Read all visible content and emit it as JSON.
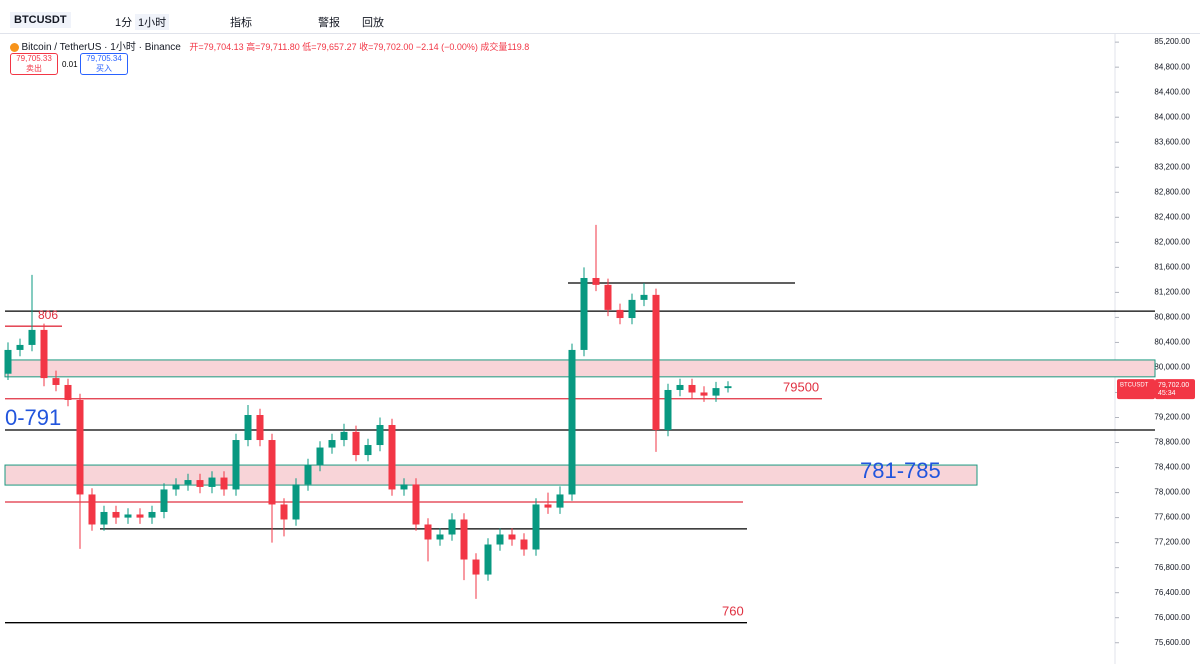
{
  "toolbar": {
    "symbol": "BTCUSDT",
    "interval_min": "1分",
    "interval": "1小时",
    "indicators": "指标",
    "alerts": "警报",
    "replay": "回放"
  },
  "legend": {
    "title": "Bitcoin / TetherUS · 1小时 · Binance",
    "ohlc": "开=79,704.13 高=79,711.80 低=79,657.27 收=79,702.00 −2.14 (−0.00%) 成交量119.8"
  },
  "trade": {
    "sell_price": "79,705.33",
    "sell": "卖出",
    "spread": "0.01",
    "buy_price": "79,705.34",
    "buy": "买入"
  },
  "price_tag": {
    "symbol": "BTCUSDT",
    "price": {
      "value": 79702,
      "label": "79,702.00"
    },
    "countdown": "45:34"
  },
  "chart_data": {
    "type": "candlestick",
    "up_color": "#089981",
    "down_color": "#f23645",
    "grid": false,
    "ylim": [
      75260,
      85330
    ],
    "yticks": [
      {
        "value": 85200,
        "label": "85,200.00"
      },
      {
        "value": 84800,
        "label": "84,800.00"
      },
      {
        "value": 84400,
        "label": "84,400.00"
      },
      {
        "value": 84000,
        "label": "84,000.00"
      },
      {
        "value": 83600,
        "label": "83,600.00"
      },
      {
        "value": 83200,
        "label": "83,200.00"
      },
      {
        "value": 82800,
        "label": "82,800.00"
      },
      {
        "value": 82400,
        "label": "82,400.00"
      },
      {
        "value": 82000,
        "label": "82,000.00"
      },
      {
        "value": 81600,
        "label": "81,600.00"
      },
      {
        "value": 81200,
        "label": "81,200.00"
      },
      {
        "value": 80800,
        "label": "80,800.00"
      },
      {
        "value": 80400,
        "label": "80,400.00"
      },
      {
        "value": 80000,
        "label": "80,000.00"
      },
      {
        "value": 79600,
        "label": "79,600.00"
      },
      {
        "value": 79200,
        "label": "79,200.00"
      },
      {
        "value": 78800,
        "label": "78,800.00"
      },
      {
        "value": 78400,
        "label": "78,400.00"
      },
      {
        "value": 78000,
        "label": "78,000.00"
      },
      {
        "value": 77600,
        "label": "77,600.00"
      },
      {
        "value": 77200,
        "label": "77,200.00"
      },
      {
        "value": 76800,
        "label": "76,800.00"
      },
      {
        "value": 76400,
        "label": "76,400.00"
      },
      {
        "value": 76000,
        "label": "76,000.00"
      },
      {
        "value": 75600,
        "label": "75,600.00"
      }
    ],
    "open": [
      79900,
      80280,
      80360,
      80600,
      79830,
      79720,
      79480,
      77970,
      77490,
      77690,
      77600,
      77650,
      77600,
      77690,
      78050,
      78130,
      78200,
      78090,
      78240,
      78050,
      78840,
      79240,
      78840,
      77810,
      77570,
      78130,
      78440,
      78720,
      78840,
      78970,
      78600,
      78760,
      79080,
      78050,
      78130,
      77490,
      77250,
      77330,
      77570,
      76930,
      76690,
      77170,
      77330,
      77250,
      77090,
      77810,
      77760,
      77970,
      80280,
      81430,
      81320,
      80920,
      80790,
      81080,
      81160,
      79000,
      79640,
      79720,
      79600,
      79550,
      79670
    ],
    "high": [
      80400,
      80460,
      81480,
      80700,
      79950,
      79820,
      79580,
      78070,
      77790,
      77790,
      77750,
      77750,
      77790,
      78150,
      78230,
      78300,
      78300,
      78340,
      78340,
      78940,
      79400,
      79340,
      78940,
      77910,
      78230,
      78540,
      78820,
      78940,
      79100,
      79070,
      78860,
      79200,
      79180,
      78230,
      78230,
      77590,
      77430,
      77670,
      77670,
      77030,
      77270,
      77430,
      77430,
      77350,
      77910,
      78000,
      78100,
      80380,
      81600,
      82280,
      81420,
      81020,
      81180,
      81350,
      81260,
      79740,
      79820,
      79820,
      79700,
      79770,
      79780
    ],
    "low": [
      79800,
      80180,
      80260,
      79700,
      79620,
      79380,
      77100,
      77390,
      77390,
      77500,
      77500,
      77500,
      77500,
      77590,
      77950,
      78030,
      77990,
      77990,
      77950,
      77950,
      78740,
      78740,
      77200,
      77300,
      77470,
      78030,
      78340,
      78620,
      78740,
      78500,
      78500,
      78660,
      77950,
      77950,
      77390,
      76900,
      77150,
      77230,
      76600,
      76300,
      76590,
      77070,
      77150,
      76990,
      76990,
      77660,
      77660,
      77870,
      80180,
      81220,
      80820,
      80690,
      80690,
      80980,
      78650,
      78900,
      79540,
      79500,
      79450,
      79450,
      79600
    ],
    "close": [
      80280,
      80360,
      80600,
      79830,
      79720,
      79480,
      77970,
      77490,
      77690,
      77600,
      77650,
      77600,
      77690,
      78050,
      78130,
      78200,
      78090,
      78240,
      78050,
      78840,
      79240,
      78840,
      77810,
      77570,
      78130,
      78440,
      78720,
      78840,
      78970,
      78600,
      78760,
      79080,
      78050,
      78130,
      77490,
      77250,
      77330,
      77570,
      76930,
      76690,
      77170,
      77330,
      77250,
      77090,
      77810,
      77760,
      77970,
      80280,
      81430,
      81320,
      80920,
      80790,
      81080,
      81160,
      79000,
      79640,
      79720,
      79600,
      79550,
      79670,
      79700
    ],
    "levels": [
      {
        "price": 80900,
        "color": "#000000"
      },
      {
        "price": 80660,
        "color": "#e03040"
      },
      {
        "price": 79500,
        "color": "#e03040"
      },
      {
        "price": 79000,
        "color": "#000000"
      },
      {
        "price": 77850,
        "color": "#e03040"
      },
      {
        "price": 77420,
        "color": "#000000"
      },
      {
        "price": 75920,
        "color": "#000000"
      },
      {
        "price": 81350,
        "color": "#000000"
      }
    ],
    "zones": [
      {
        "top": 80120,
        "bottom": 79850,
        "color": "#f8d4d8",
        "border": "#1a9a80"
      },
      {
        "top": 78440,
        "bottom": 78120,
        "color": "#f8d4d8",
        "border": "#1a9a80"
      }
    ],
    "annotations": [
      {
        "text": "806",
        "color": "#e03040"
      },
      {
        "text": "0-791",
        "color": "#2255dd"
      },
      {
        "text": "79500",
        "color": "#e03040"
      },
      {
        "text": "781-785",
        "color": "#2255dd"
      },
      {
        "text": "760",
        "color": "#e03040"
      }
    ]
  }
}
